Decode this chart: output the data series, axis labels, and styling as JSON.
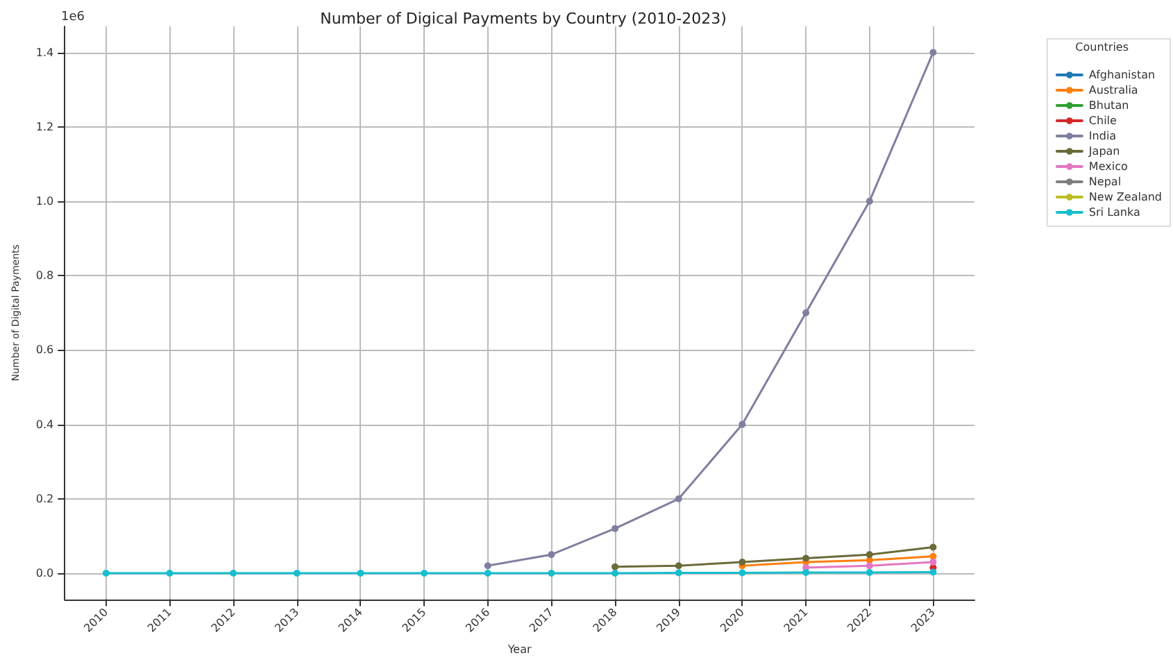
{
  "chart_data": {
    "type": "line",
    "title": "Number of Digical Payments by Country (2010-2023)",
    "xlabel": "Year",
    "ylabel": "Number of Digital Payments",
    "legend_title": "Countries",
    "annotations": [
      "1e6"
    ],
    "x": [
      2010,
      2011,
      2012,
      2013,
      2014,
      2015,
      2016,
      2017,
      2018,
      2019,
      2020,
      2021,
      2022,
      2023
    ],
    "series": [
      {
        "name": "Afghanistan",
        "color": "#1f77b4",
        "values": [
          null,
          null,
          null,
          null,
          null,
          null,
          null,
          null,
          null,
          null,
          null,
          null,
          null,
          null
        ]
      },
      {
        "name": "Australia",
        "color": "#ff7f0e",
        "values": [
          null,
          null,
          null,
          null,
          null,
          null,
          null,
          null,
          null,
          null,
          0.02,
          0.03,
          0.035,
          0.045
        ]
      },
      {
        "name": "Bhutan",
        "color": "#2ca02c",
        "values": [
          null,
          null,
          null,
          null,
          null,
          null,
          null,
          null,
          null,
          null,
          null,
          null,
          null,
          null
        ]
      },
      {
        "name": "Chile",
        "color": "#d62728",
        "values": [
          null,
          null,
          null,
          null,
          null,
          null,
          null,
          null,
          null,
          null,
          null,
          null,
          null,
          0.015
        ]
      },
      {
        "name": "India",
        "color": "#7f7f9f",
        "values": [
          null,
          null,
          null,
          null,
          null,
          null,
          0.02,
          0.05,
          0.12,
          0.2,
          0.4,
          0.7,
          1.0,
          1.4
        ]
      },
      {
        "name": "Japan",
        "color": "#6b6b3a",
        "values": [
          null,
          null,
          null,
          null,
          null,
          null,
          null,
          null,
          0.017,
          0.02,
          0.03,
          0.04,
          0.05,
          0.07
        ]
      },
      {
        "name": "Mexico",
        "color": "#e377c2",
        "values": [
          null,
          null,
          null,
          null,
          null,
          null,
          null,
          null,
          null,
          null,
          null,
          0.015,
          0.02,
          0.03
        ]
      },
      {
        "name": "Nepal",
        "color": "#7f7f7f",
        "values": [
          null,
          null,
          null,
          null,
          null,
          null,
          null,
          null,
          null,
          null,
          null,
          null,
          null,
          null
        ]
      },
      {
        "name": "New Zealand",
        "color": "#bcbd22",
        "values": [
          null,
          null,
          null,
          null,
          null,
          null,
          null,
          null,
          null,
          null,
          null,
          null,
          null,
          null
        ]
      },
      {
        "name": "Sri Lanka",
        "color": "#17becf",
        "values": [
          0,
          0,
          0,
          0,
          0,
          0,
          0,
          0,
          0,
          0.001,
          0.001,
          0.002,
          0.002,
          0.003
        ]
      }
    ],
    "xlim": [
      2009.35,
      2023.65
    ],
    "xticks": [
      2010,
      2011,
      2012,
      2013,
      2014,
      2015,
      2016,
      2017,
      2018,
      2019,
      2020,
      2021,
      2022,
      2023
    ],
    "ylim": [
      -0.07,
      1.47
    ],
    "yticks": [
      {
        "value": 0,
        "label": "0.0"
      },
      {
        "value": 0.2,
        "label": "0.2"
      },
      {
        "value": 0.4,
        "label": "0.4"
      },
      {
        "value": 0.6,
        "label": "0.6"
      },
      {
        "value": 0.8,
        "label": "0.8"
      },
      {
        "value": 1,
        "label": "1.0"
      },
      {
        "value": 1.2,
        "label": "1.2"
      },
      {
        "value": 1.4,
        "label": "1.4"
      }
    ],
    "grid": true,
    "legend": "top right",
    "marker": "circle",
    "line_style": "solid"
  }
}
